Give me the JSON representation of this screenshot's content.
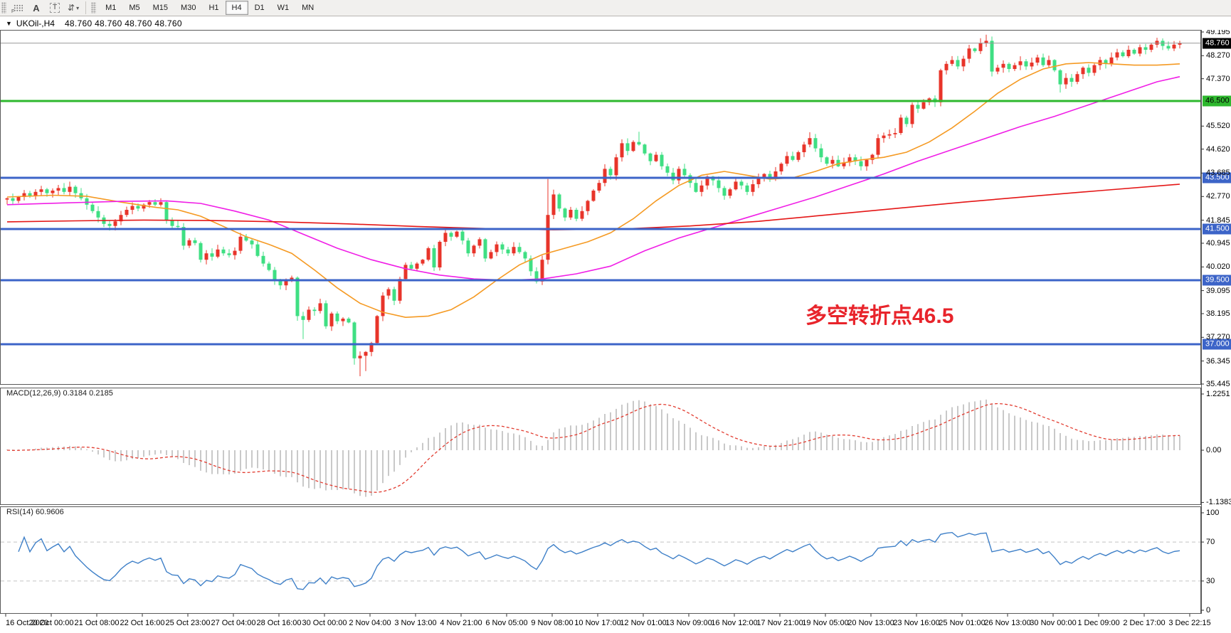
{
  "toolbar": {
    "grid_tool_label": "F",
    "label_tool_label": "A",
    "textbox_tool_label": "T",
    "cycle_tool_icon": "⇵",
    "caret_icon": "▾",
    "timeframes": [
      "M1",
      "M5",
      "M15",
      "M30",
      "H1",
      "H4",
      "D1",
      "W1",
      "MN"
    ],
    "active_timeframe": "H4"
  },
  "title_bar": {
    "collapse_icon": "▼",
    "symbol": "UKOil-,H4",
    "quotes": "48.760 48.760 48.760 48.760"
  },
  "annotation": {
    "text": "多空转折点46.5",
    "color": "#e8242b"
  },
  "price_axis": {
    "ticks": [
      "49.195",
      "48.270",
      "47.370",
      "45.520",
      "44.620",
      "43.685",
      "42.770",
      "41.845",
      "40.945",
      "40.020",
      "39.095",
      "38.195",
      "37.270",
      "36.345",
      "35.445"
    ],
    "current_price": "48.760",
    "current_badge_bg": "#000000",
    "current_badge_text": "#ffffff"
  },
  "hlines": [
    {
      "label": "46.500",
      "price": 46.5,
      "color": "#2eb82e",
      "text_color": "#000000"
    },
    {
      "label": "43.500",
      "price": 43.5,
      "color": "#3c64c8",
      "text_color": "#ffffff"
    },
    {
      "label": "41.500",
      "price": 41.5,
      "color": "#3c64c8",
      "text_color": "#ffffff"
    },
    {
      "label": "39.500",
      "price": 39.5,
      "color": "#3c64c8",
      "text_color": "#ffffff"
    },
    {
      "label": "37.000",
      "price": 37.0,
      "color": "#3c64c8",
      "text_color": "#ffffff"
    }
  ],
  "macd_panel": {
    "label": "MACD(12,26,9) 0.3184 0.2185",
    "axis": [
      "1.2251",
      "0.00",
      "-1.1383"
    ],
    "histogram_color": "#c9c9c9",
    "signal_color": "#e23c30"
  },
  "rsi_panel": {
    "label": "RSI(14) 60.9606",
    "axis": [
      100,
      70,
      30,
      0
    ],
    "levels": [
      70,
      30
    ],
    "line_color": "#3f80c8",
    "level_color": "#c4c4c4"
  },
  "time_axis": {
    "labels": [
      "16 Oct 2020",
      "20 Oct 00:00",
      "21 Oct 08:00",
      "22 Oct 16:00",
      "25 Oct 23:00",
      "27 Oct 04:00",
      "28 Oct 16:00",
      "30 Oct 00:00",
      "2 Nov 04:00",
      "3 Nov 13:00",
      "4 Nov 21:00",
      "6 Nov 05:00",
      "9 Nov 08:00",
      "10 Nov 17:00",
      "12 Nov 01:00",
      "13 Nov 09:00",
      "16 Nov 12:00",
      "17 Nov 21:00",
      "19 Nov 05:00",
      "20 Nov 13:00",
      "23 Nov 16:00",
      "25 Nov 01:00",
      "26 Nov 13:00",
      "30 Nov 00:00",
      "1 Dec 09:00",
      "2 Dec 17:00",
      "3 Dec 22:15"
    ]
  },
  "chart_data": {
    "type": "candlestick+indicators",
    "symbol": "UKOil-",
    "timeframe": "H4",
    "current_price": 48.76,
    "up_color": "#e8342a",
    "down_color": "#3fdf83",
    "price_line_color": "#9a9a9a",
    "closes": [
      42.7,
      42.6,
      42.75,
      42.9,
      42.8,
      42.95,
      43.05,
      42.9,
      43.0,
      43.1,
      42.95,
      43.15,
      42.9,
      42.7,
      42.45,
      42.2,
      41.95,
      41.7,
      41.62,
      41.8,
      42.05,
      42.25,
      42.4,
      42.3,
      42.45,
      42.55,
      42.45,
      42.55,
      41.85,
      41.62,
      41.58,
      40.85,
      41.06,
      40.95,
      40.3,
      40.55,
      40.42,
      40.7,
      40.55,
      40.48,
      40.65,
      41.2,
      41.05,
      40.9,
      40.45,
      40.15,
      39.9,
      39.5,
      39.3,
      39.52,
      39.6,
      38.1,
      37.95,
      38.35,
      38.3,
      38.6,
      37.7,
      38.2,
      37.9,
      38.0,
      37.85,
      36.45,
      36.55,
      36.7,
      37.05,
      38.1,
      38.9,
      39.15,
      38.7,
      39.55,
      40.1,
      39.95,
      40.15,
      40.3,
      40.75,
      40.0,
      41.0,
      41.35,
      41.2,
      41.4,
      41.05,
      40.55,
      40.85,
      41.1,
      40.35,
      40.6,
      40.9,
      40.7,
      40.55,
      40.8,
      40.6,
      40.35,
      39.85,
      39.45,
      40.3,
      42.05,
      42.85,
      42.3,
      41.95,
      42.25,
      41.9,
      42.2,
      42.6,
      43.0,
      43.3,
      43.85,
      43.6,
      44.3,
      44.85,
      44.55,
      44.9,
      44.8,
      44.45,
      44.15,
      44.4,
      43.95,
      43.7,
      43.4,
      43.85,
      43.6,
      43.3,
      42.95,
      43.2,
      43.55,
      43.4,
      43.1,
      42.8,
      43.05,
      43.35,
      43.2,
      42.95,
      43.25,
      43.5,
      43.65,
      43.45,
      43.75,
      44.05,
      44.35,
      44.2,
      44.5,
      44.8,
      45.05,
      44.65,
      44.3,
      44.05,
      44.2,
      43.95,
      44.1,
      44.3,
      44.15,
      43.95,
      44.2,
      44.4,
      45.05,
      45.15,
      45.2,
      45.25,
      45.85,
      45.6,
      46.35,
      46.2,
      46.45,
      46.6,
      46.45,
      47.7,
      47.95,
      48.1,
      47.85,
      48.15,
      48.55,
      48.45,
      48.75,
      48.85,
      47.65,
      47.8,
      47.95,
      47.75,
      47.9,
      48.05,
      47.85,
      48.0,
      48.2,
      47.9,
      48.1,
      47.7,
      47.15,
      47.4,
      47.25,
      47.55,
      47.8,
      47.6,
      47.9,
      48.1,
      47.95,
      48.2,
      48.4,
      48.25,
      48.5,
      48.35,
      48.6,
      48.5,
      48.7,
      48.85,
      48.65,
      48.55,
      48.7,
      48.76
    ],
    "wick_overrides": {
      "11": {
        "high": 43.35
      },
      "27": {
        "high": 42.7
      },
      "41": {
        "high": 41.35
      },
      "52": {
        "low": 37.2
      },
      "61": {
        "low": 36.2
      },
      "62": {
        "low": 35.75
      },
      "63": {
        "low": 35.95
      },
      "95": {
        "high": 43.45
      },
      "111": {
        "high": 45.3
      },
      "141": {
        "high": 45.28
      },
      "171": {
        "high": 48.95
      },
      "172": {
        "high": 49.09
      },
      "185": {
        "low": 46.83
      },
      "206": {
        "high": 48.85
      }
    },
    "ma_lines": [
      {
        "name": "ma-fast-orange",
        "color": "#f59a23",
        "points": [
          [
            0,
            42.75
          ],
          [
            8,
            42.82
          ],
          [
            14,
            42.78
          ],
          [
            20,
            42.55
          ],
          [
            26,
            42.35
          ],
          [
            30,
            42.25
          ],
          [
            34,
            42.0
          ],
          [
            38,
            41.6
          ],
          [
            42,
            41.2
          ],
          [
            46,
            40.9
          ],
          [
            50,
            40.55
          ],
          [
            54,
            39.9
          ],
          [
            58,
            39.2
          ],
          [
            62,
            38.6
          ],
          [
            66,
            38.25
          ],
          [
            70,
            38.05
          ],
          [
            74,
            38.1
          ],
          [
            78,
            38.35
          ],
          [
            82,
            38.85
          ],
          [
            86,
            39.5
          ],
          [
            90,
            40.1
          ],
          [
            94,
            40.5
          ],
          [
            98,
            40.75
          ],
          [
            102,
            41.0
          ],
          [
            106,
            41.35
          ],
          [
            110,
            41.9
          ],
          [
            114,
            42.6
          ],
          [
            118,
            43.2
          ],
          [
            122,
            43.6
          ],
          [
            126,
            43.75
          ],
          [
            130,
            43.6
          ],
          [
            134,
            43.45
          ],
          [
            138,
            43.5
          ],
          [
            142,
            43.75
          ],
          [
            146,
            44.05
          ],
          [
            150,
            44.2
          ],
          [
            154,
            44.3
          ],
          [
            158,
            44.5
          ],
          [
            162,
            44.9
          ],
          [
            166,
            45.45
          ],
          [
            170,
            46.1
          ],
          [
            174,
            46.8
          ],
          [
            178,
            47.35
          ],
          [
            182,
            47.75
          ],
          [
            186,
            47.95
          ],
          [
            190,
            48.0
          ],
          [
            194,
            47.95
          ],
          [
            198,
            47.9
          ],
          [
            202,
            47.9
          ],
          [
            206,
            47.95
          ]
        ]
      },
      {
        "name": "ma-mid-magenta",
        "color": "#f01ee6",
        "points": [
          [
            0,
            42.45
          ],
          [
            10,
            42.52
          ],
          [
            20,
            42.58
          ],
          [
            28,
            42.6
          ],
          [
            34,
            42.5
          ],
          [
            40,
            42.2
          ],
          [
            46,
            41.85
          ],
          [
            52,
            41.3
          ],
          [
            58,
            40.75
          ],
          [
            64,
            40.3
          ],
          [
            70,
            39.95
          ],
          [
            76,
            39.7
          ],
          [
            82,
            39.55
          ],
          [
            88,
            39.5
          ],
          [
            94,
            39.55
          ],
          [
            100,
            39.75
          ],
          [
            106,
            40.05
          ],
          [
            112,
            40.65
          ],
          [
            118,
            41.15
          ],
          [
            124,
            41.55
          ],
          [
            130,
            41.95
          ],
          [
            136,
            42.35
          ],
          [
            142,
            42.75
          ],
          [
            148,
            43.2
          ],
          [
            154,
            43.65
          ],
          [
            160,
            44.15
          ],
          [
            166,
            44.6
          ],
          [
            172,
            45.05
          ],
          [
            178,
            45.5
          ],
          [
            184,
            45.9
          ],
          [
            190,
            46.35
          ],
          [
            196,
            46.8
          ],
          [
            202,
            47.25
          ],
          [
            206,
            47.45
          ]
        ]
      },
      {
        "name": "ma-slow-red",
        "color": "#e41616",
        "points": [
          [
            0,
            41.78
          ],
          [
            12,
            41.82
          ],
          [
            24,
            41.85
          ],
          [
            36,
            41.83
          ],
          [
            48,
            41.78
          ],
          [
            60,
            41.7
          ],
          [
            72,
            41.6
          ],
          [
            84,
            41.52
          ],
          [
            96,
            41.47
          ],
          [
            108,
            41.5
          ],
          [
            120,
            41.62
          ],
          [
            132,
            41.8
          ],
          [
            144,
            42.05
          ],
          [
            156,
            42.3
          ],
          [
            168,
            42.55
          ],
          [
            180,
            42.78
          ],
          [
            192,
            43.0
          ],
          [
            206,
            43.25
          ]
        ]
      }
    ],
    "indicators": {
      "macd": {
        "fast": 12,
        "slow": 26,
        "signal": 9,
        "current_main": 0.3184,
        "current_signal": 0.2185,
        "max": 1.2251,
        "min": -1.1383
      },
      "rsi": {
        "period": 14,
        "current": 60.9606
      }
    }
  }
}
